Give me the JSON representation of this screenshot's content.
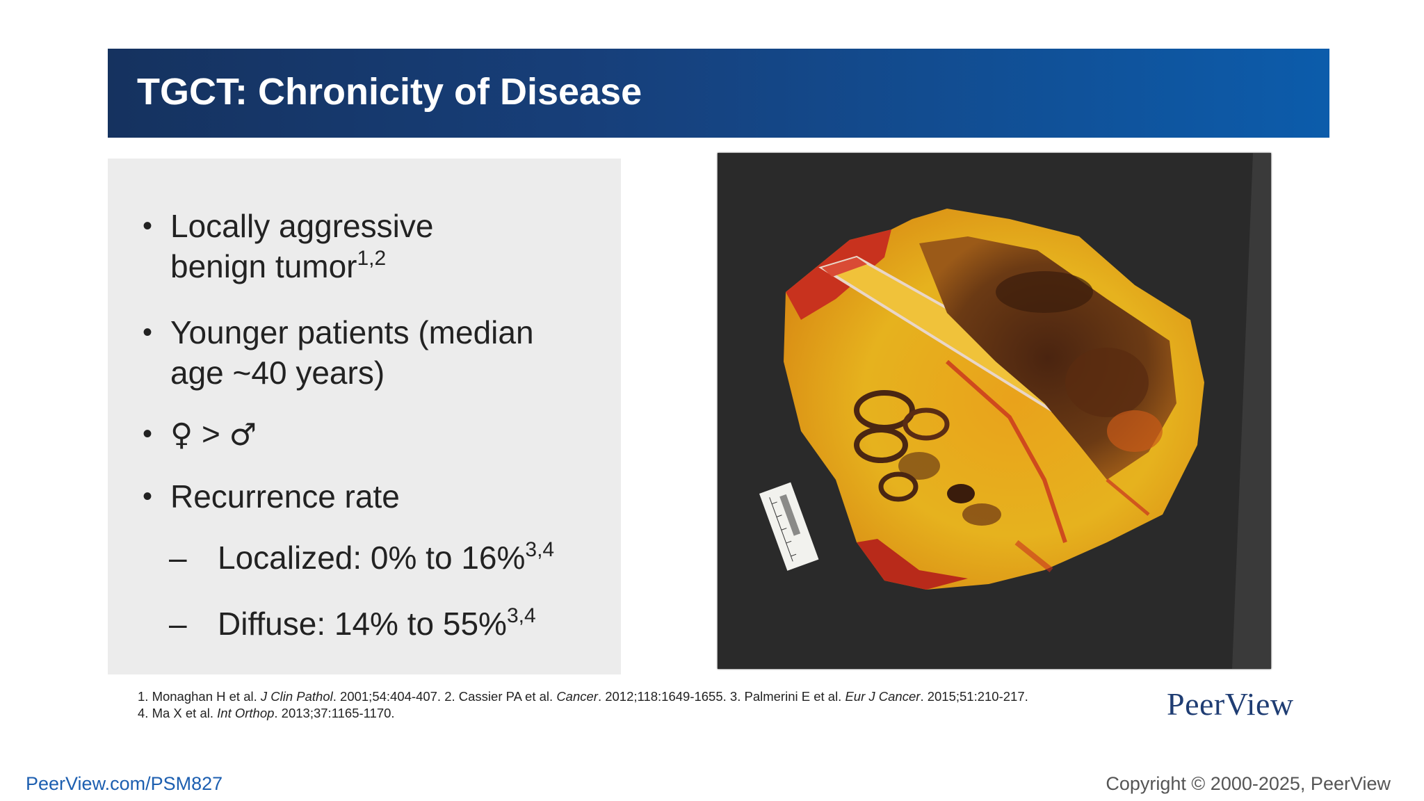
{
  "slide": {
    "title": "TGCT: Chronicity of Disease"
  },
  "bullets": [
    {
      "line1": "Locally aggressive",
      "line2": "benign tumor",
      "sup": "1,2"
    },
    {
      "line1": "Younger patients (median",
      "line2": "age ~40 years)"
    },
    {
      "female": "♀",
      "gt": ">",
      "male": "♂"
    },
    {
      "text": "Recurrence rate"
    }
  ],
  "subbullets": [
    {
      "dash": "–",
      "text": "Localized: 0% to 16%",
      "sup": "3,4"
    },
    {
      "dash": "–",
      "text": "Diffuse: 14% to 55%",
      "sup": "3,4"
    }
  ],
  "references": {
    "r1_author": "1. Monaghan H et al.",
    "r1_journal": "J Clin Pathol",
    "r1_rest": ". 2001;54:404-407. 2. Cassier PA et al.",
    "r2_journal": "Cancer",
    "r2_rest": ". 2012;118:1649-1655. 3. Palmerini E et al.",
    "r3_journal": "Eur J Cancer",
    "r3_rest": ". 2015;51:210-217.",
    "r4_author": "4. Ma X et al.",
    "r4_journal": "Int Orthop",
    "r4_rest": ". 2013;37:1165-1170."
  },
  "logo": "PeerView",
  "footer": {
    "url": "PeerView.com/PSM827",
    "copyright": "Copyright © 2000-2025, PeerView"
  },
  "photo": {
    "icon": "gross-specimen-photo"
  },
  "colors": {
    "header_start": "#15325f",
    "header_end": "#0c5cab",
    "panel": "#ececec",
    "link": "#1d5fb0"
  }
}
